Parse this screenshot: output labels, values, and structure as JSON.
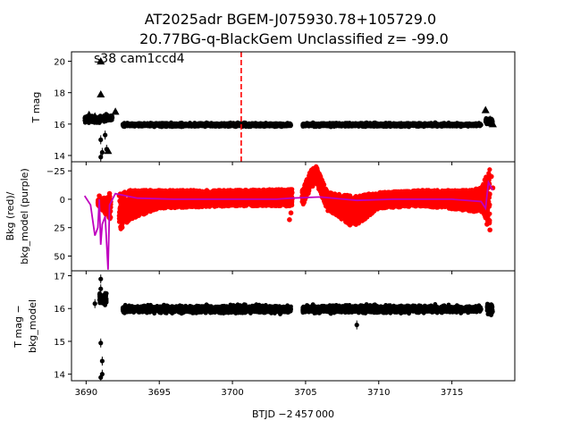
{
  "chart_data": {
    "title_line1": "AT2025adr  BGEM-J075930.78+105729.0",
    "title_line2": "20.77BG-q-BlackGem Unclassified z= -99.0",
    "type": "scatter",
    "xlabel": "BTJD −2 457 000",
    "xlim": [
      3689,
      3719.3
    ],
    "xticks": [
      3690,
      3695,
      3700,
      3705,
      3710,
      3715
    ],
    "colors": {
      "point": "#000000",
      "bkg": "#ff0000",
      "model": "#bf00bf",
      "marker_line": "#ff0000"
    },
    "panels": [
      {
        "id": "lightcurve",
        "ylabel": "T mag",
        "ylim": [
          20.6,
          13.6
        ],
        "yticks": [
          14,
          16,
          18,
          20
        ],
        "annotation": "s38 cam1ccd4",
        "vline_x": 3700.6,
        "segments": [
          {
            "x0": 3689.9,
            "x1": 3691.0,
            "y": 16.3,
            "spread": 0.35
          },
          {
            "x0": 3691.2,
            "x1": 3691.8,
            "y": 16.4,
            "spread": 0.4
          },
          {
            "x0": 3692.5,
            "x1": 3704.0,
            "y": 15.95,
            "spread": 0.18
          },
          {
            "x0": 3704.8,
            "x1": 3717.0,
            "y": 15.95,
            "spread": 0.18
          },
          {
            "x0": 3717.3,
            "x1": 3717.8,
            "y": 16.2,
            "spread": 0.35
          }
        ],
        "points": [
          {
            "x": 3691.0,
            "y": 13.9
          },
          {
            "x": 3691.1,
            "y": 14.2
          },
          {
            "x": 3691.0,
            "y": 15.0
          },
          {
            "x": 3691.4,
            "y": 14.4
          },
          {
            "x": 3691.3,
            "y": 15.3
          }
        ],
        "triangles": [
          {
            "x": 3691.0,
            "y": 20.0
          },
          {
            "x": 3691.0,
            "y": 17.9
          },
          {
            "x": 3691.5,
            "y": 14.3
          },
          {
            "x": 3690.2,
            "y": 16.6
          },
          {
            "x": 3690.6,
            "y": 16.5
          },
          {
            "x": 3692.0,
            "y": 16.8
          },
          {
            "x": 3717.3,
            "y": 16.9
          },
          {
            "x": 3717.6,
            "y": 16.3
          },
          {
            "x": 3717.8,
            "y": 16.0
          }
        ]
      },
      {
        "id": "background",
        "ylabel_line1": "Bkg (red)/",
        "ylabel_line2": "bkg_model (purple)",
        "ylim": [
          -33,
          63
        ],
        "yticks": [
          -25,
          0,
          25,
          50
        ],
        "bkg_envelope": [
          {
            "x": 3690.8,
            "lo": 0,
            "hi": 5
          },
          {
            "x": 3692.3,
            "lo": -5,
            "hi": 28
          },
          {
            "x": 3693.0,
            "lo": -8,
            "hi": 18
          },
          {
            "x": 3695.0,
            "lo": -8,
            "hi": 8
          },
          {
            "x": 3700.0,
            "lo": -8,
            "hi": 6
          },
          {
            "x": 3704.0,
            "lo": -9,
            "hi": 6
          },
          {
            "x": 3704.8,
            "lo": -8,
            "hi": 6
          },
          {
            "x": 3705.3,
            "lo": -25,
            "hi": -8
          },
          {
            "x": 3705.7,
            "lo": -30,
            "hi": -15
          },
          {
            "x": 3706.5,
            "lo": -6,
            "hi": 10
          },
          {
            "x": 3708.3,
            "lo": -3,
            "hi": 25
          },
          {
            "x": 3710.0,
            "lo": -6,
            "hi": 8
          },
          {
            "x": 3713.0,
            "lo": -8,
            "hi": 6
          },
          {
            "x": 3716.0,
            "lo": -8,
            "hi": 10
          },
          {
            "x": 3717.0,
            "lo": -10,
            "hi": 12
          },
          {
            "x": 3717.6,
            "lo": -28,
            "hi": 22
          }
        ],
        "bkg_extra": [
          {
            "x": 3690.9,
            "y": -3
          },
          {
            "x": 3691.6,
            "y": -5
          },
          {
            "x": 3703.9,
            "y": 18
          },
          {
            "x": 3704.0,
            "y": 12
          },
          {
            "x": 3717.6,
            "y": 27
          },
          {
            "x": 3717.4,
            "y": 22
          },
          {
            "x": 3717.8,
            "y": -10
          },
          {
            "x": 3717.7,
            "y": -20
          }
        ],
        "model": [
          {
            "x": 3689.9,
            "y": -3
          },
          {
            "x": 3690.3,
            "y": 5
          },
          {
            "x": 3690.6,
            "y": 32
          },
          {
            "x": 3690.8,
            "y": 25
          },
          {
            "x": 3690.9,
            "y": 0
          },
          {
            "x": 3691.0,
            "y": 40
          },
          {
            "x": 3691.1,
            "y": 22
          },
          {
            "x": 3691.3,
            "y": 15
          },
          {
            "x": 3691.5,
            "y": 62
          },
          {
            "x": 3691.6,
            "y": 5
          },
          {
            "x": 3692.0,
            "y": -5
          },
          {
            "x": 3693.5,
            "y": -1
          },
          {
            "x": 3696.0,
            "y": 0
          },
          {
            "x": 3700.0,
            "y": 0
          },
          {
            "x": 3703.0,
            "y": 0
          },
          {
            "x": 3704.0,
            "y": -1
          },
          {
            "x": 3706.0,
            "y": -2
          },
          {
            "x": 3708.5,
            "y": 1
          },
          {
            "x": 3711.0,
            "y": 0
          },
          {
            "x": 3715.0,
            "y": 0
          },
          {
            "x": 3717.0,
            "y": 2
          },
          {
            "x": 3717.3,
            "y": 8
          },
          {
            "x": 3717.5,
            "y": -15
          },
          {
            "x": 3717.8,
            "y": -8
          }
        ]
      },
      {
        "id": "residual",
        "ylabel_line1": "T mag −",
        "ylabel_line2": "bkg_model",
        "ylim": [
          17.15,
          13.8
        ],
        "yticks": [
          14,
          15,
          16,
          17
        ],
        "segments": [
          {
            "x0": 3690.9,
            "x1": 3691.4,
            "y": 16.3,
            "spread": 0.3
          },
          {
            "x0": 3692.5,
            "x1": 3704.0,
            "y": 15.98,
            "spread": 0.18
          },
          {
            "x0": 3704.8,
            "x1": 3717.0,
            "y": 15.98,
            "spread": 0.18
          },
          {
            "x0": 3717.4,
            "x1": 3717.8,
            "y": 16.0,
            "spread": 0.3
          }
        ],
        "points": [
          {
            "x": 3691.0,
            "y": 13.9
          },
          {
            "x": 3691.1,
            "y": 14.0
          },
          {
            "x": 3691.1,
            "y": 14.4
          },
          {
            "x": 3691.0,
            "y": 14.95
          },
          {
            "x": 3691.0,
            "y": 16.6
          },
          {
            "x": 3691.0,
            "y": 16.9
          },
          {
            "x": 3690.6,
            "y": 16.15
          },
          {
            "x": 3708.5,
            "y": 15.5
          }
        ]
      }
    ]
  }
}
